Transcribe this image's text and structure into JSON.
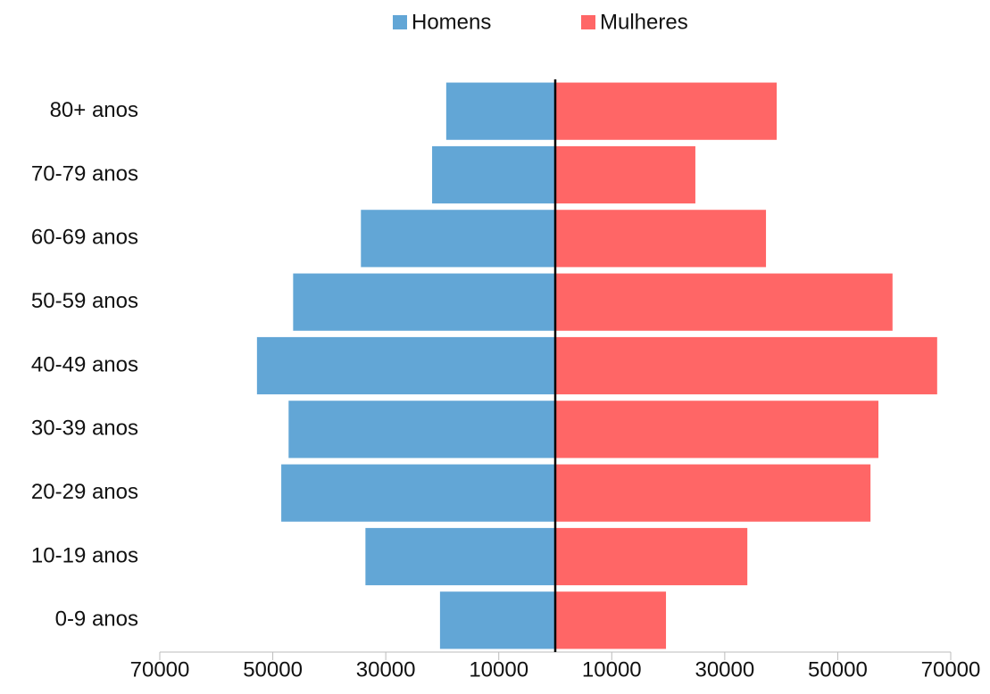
{
  "chart_data": {
    "type": "bar",
    "orientation": "horizontal",
    "stacked": false,
    "categories": [
      "80+ anos",
      "70-79 anos",
      "60-69 anos",
      "50-59 anos",
      "40-49 anos",
      "30-39 anos",
      "20-29 anos",
      "10-19 anos",
      "0-9 anos"
    ],
    "series": [
      {
        "name": "Homens",
        "color": "#62a6d6",
        "values": [
          -19300,
          -21800,
          -34400,
          -46400,
          -52800,
          -47200,
          -48500,
          -33600,
          -20400
        ]
      },
      {
        "name": "Mulheres",
        "color": "#ff6666",
        "values": [
          39200,
          24800,
          37300,
          59700,
          67600,
          57200,
          55800,
          34000,
          19600
        ]
      }
    ],
    "xlim": [
      -70000,
      70000
    ],
    "xticks": [
      {
        "value": -70000,
        "label": "70000"
      },
      {
        "value": -50000,
        "label": "50000"
      },
      {
        "value": -30000,
        "label": "30000"
      },
      {
        "value": -10000,
        "label": "10000"
      },
      10000,
      30000,
      50000,
      70000
    ],
    "legend": "top",
    "grid": false
  }
}
